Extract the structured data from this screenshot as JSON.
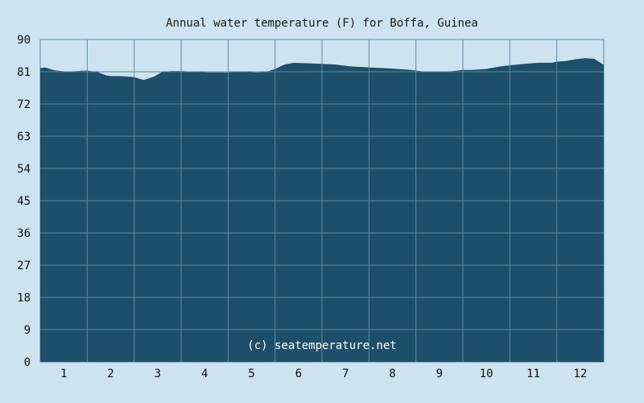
{
  "chart_data": {
    "type": "area",
    "title": "Annual water temperature (F) for Boffa, Guinea",
    "watermark": "(c) seatemperature.net",
    "xlabel": "",
    "ylabel": "",
    "ylim": [
      0,
      90
    ],
    "y_ticks": [
      0,
      9,
      18,
      27,
      36,
      45,
      54,
      63,
      72,
      81,
      90
    ],
    "x_ticks": [
      "1",
      "2",
      "3",
      "4",
      "5",
      "6",
      "7",
      "8",
      "9",
      "10",
      "11",
      "12"
    ],
    "grid": true,
    "colors": {
      "fill": "#1e4f6a",
      "grid": "#5c8aa3",
      "background": "#cde3ef"
    },
    "x": [
      0.0,
      0.1,
      0.3,
      0.6,
      0.9,
      1.0,
      1.2,
      1.4,
      1.5,
      1.7,
      2.0,
      2.2,
      2.4,
      2.5,
      2.6,
      2.8,
      3.0,
      3.3,
      3.6,
      4.0,
      4.3,
      4.6,
      4.8,
      5.0,
      5.2,
      5.4,
      5.6,
      6.0,
      6.3,
      6.6,
      7.0,
      7.3,
      7.6,
      7.9,
      8.2,
      8.5,
      8.8,
      9.0,
      9.2,
      9.5,
      9.8,
      10.0,
      10.3,
      10.6,
      10.9,
      11.0,
      11.2,
      11.4,
      11.6,
      11.8,
      12.0
    ],
    "values": [
      82.0,
      82.2,
      81.4,
      81.0,
      81.3,
      81.3,
      81.0,
      80.0,
      79.8,
      79.8,
      79.5,
      78.7,
      79.5,
      80.2,
      81.0,
      81.2,
      81.2,
      81.0,
      80.8,
      80.8,
      81.0,
      80.8,
      80.9,
      81.8,
      83.0,
      83.5,
      83.4,
      83.2,
      83.0,
      82.5,
      82.2,
      82.0,
      81.8,
      81.5,
      81.0,
      80.9,
      81.2,
      81.5,
      81.5,
      81.8,
      82.5,
      82.8,
      83.2,
      83.5,
      83.5,
      83.8,
      84.0,
      84.5,
      84.8,
      84.6,
      82.9
    ]
  }
}
